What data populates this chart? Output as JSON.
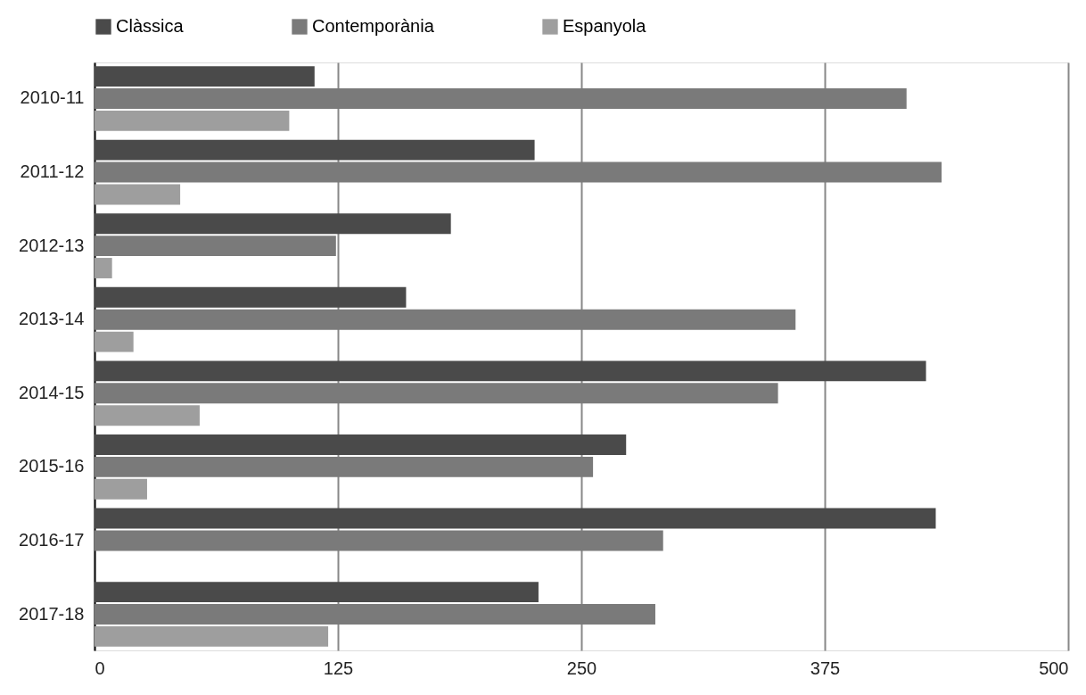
{
  "chart_data": {
    "type": "bar",
    "orientation": "horizontal",
    "categories": [
      "2010-11",
      "2011-12",
      "2012-13",
      "2013-14",
      "2014-15",
      "2015-16",
      "2016-17",
      "2017-18"
    ],
    "series": [
      {
        "name": "Clàssica",
        "color": "#4a4a4a",
        "values": [
          113,
          226,
          183,
          160,
          427,
          273,
          432,
          228
        ]
      },
      {
        "name": "Contemporània",
        "color": "#7a7a7a",
        "values": [
          417,
          435,
          124,
          360,
          351,
          256,
          292,
          288
        ]
      },
      {
        "name": "Espanyola",
        "color": "#9e9e9e",
        "values": [
          100,
          44,
          9,
          20,
          54,
          27,
          null,
          120
        ]
      }
    ],
    "xlim": [
      0,
      500
    ],
    "xticks": [
      0,
      125,
      250,
      375,
      500
    ],
    "grid": "x",
    "legend": "top"
  }
}
